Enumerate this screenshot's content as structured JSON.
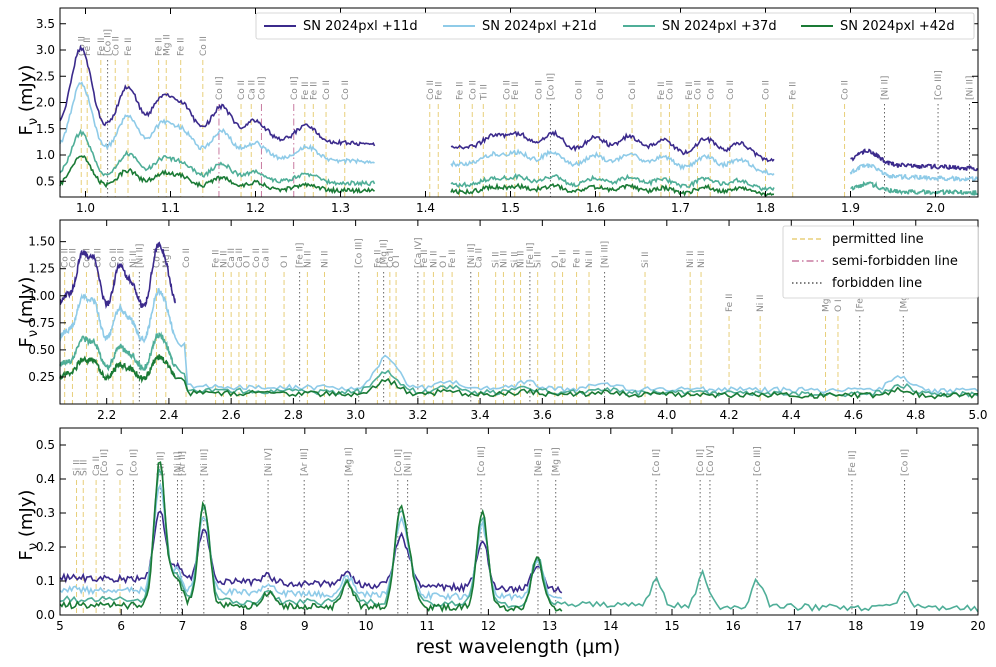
{
  "chart_data": {
    "type": "line",
    "xlabel": "rest wavelength (μm)",
    "ylabel": "F",
    "ylabel_sub": "ν",
    "ylabel_unit": " (mJy)",
    "series": [
      {
        "name": "SN 2024pxl +11d",
        "color": "#3b2a8c"
      },
      {
        "name": "SN 2024pxl +21d",
        "color": "#8fcbe8"
      },
      {
        "name": "SN 2024pxl +37d",
        "color": "#4fae98"
      },
      {
        "name": "SN 2024pxl +42d",
        "color": "#1a7a35"
      }
    ],
    "line_types": [
      {
        "name": "permitted line",
        "color": "#e8cf7a",
        "style": "dashed"
      },
      {
        "name": "semi-forbidden line",
        "color": "#c87aa0",
        "style": "dashdot"
      },
      {
        "name": "forbidden line",
        "color": "#555555",
        "style": "dotted"
      }
    ],
    "panels": [
      {
        "id": "p1",
        "xlim": [
          0.97,
          2.05
        ],
        "ylim": [
          0.2,
          3.8
        ],
        "xticks": [
          "1.0",
          "1.1",
          "1.2",
          "1.3",
          "1.4",
          "1.5",
          "1.6",
          "1.7",
          "1.8",
          "1.9",
          "2.0"
        ],
        "yticks": [
          "0.5",
          "1.0",
          "1.5",
          "2.0",
          "2.5",
          "3.0",
          "3.5"
        ],
        "lines": [
          {
            "x": 0.995,
            "label": "Co II",
            "kind": "permitted",
            "row": 0
          },
          {
            "x": 1.002,
            "label": "Fe II",
            "kind": "permitted",
            "row": 0
          },
          {
            "x": 1.018,
            "label": "Fe II",
            "kind": "permitted",
            "row": 0
          },
          {
            "x": 1.026,
            "label": "[Co II]",
            "kind": "forbidden",
            "row": 0
          },
          {
            "x": 1.035,
            "label": "Co II",
            "kind": "permitted",
            "row": 0
          },
          {
            "x": 1.05,
            "label": "Fe II",
            "kind": "permitted",
            "row": 0
          },
          {
            "x": 1.086,
            "label": "Fe II",
            "kind": "permitted",
            "row": 0
          },
          {
            "x": 1.095,
            "label": "Mg II",
            "kind": "permitted",
            "row": 0
          },
          {
            "x": 1.112,
            "label": "Fe II",
            "kind": "permitted",
            "row": 0
          },
          {
            "x": 1.138,
            "label": "Co II",
            "kind": "permitted",
            "row": 0
          },
          {
            "x": 1.157,
            "label": "Co II]",
            "kind": "semi",
            "row": 1
          },
          {
            "x": 1.183,
            "label": "Co II",
            "kind": "permitted",
            "row": 1
          },
          {
            "x": 1.195,
            "label": "Ca II",
            "kind": "permitted",
            "row": 1
          },
          {
            "x": 1.207,
            "label": "Co II]",
            "kind": "semi",
            "row": 1
          },
          {
            "x": 1.245,
            "label": "Co II]",
            "kind": "semi",
            "row": 1
          },
          {
            "x": 1.258,
            "label": "Fe II",
            "kind": "permitted",
            "row": 1
          },
          {
            "x": 1.268,
            "label": "Fe II",
            "kind": "permitted",
            "row": 1
          },
          {
            "x": 1.283,
            "label": "Co II",
            "kind": "permitted",
            "row": 1
          },
          {
            "x": 1.305,
            "label": "Co II",
            "kind": "permitted",
            "row": 1
          },
          {
            "x": 1.405,
            "label": "Co II",
            "kind": "permitted",
            "row": 1
          },
          {
            "x": 1.415,
            "label": "Fe II",
            "kind": "permitted",
            "row": 1
          },
          {
            "x": 1.44,
            "label": "Fe II",
            "kind": "permitted",
            "row": 1
          },
          {
            "x": 1.455,
            "label": "Co II",
            "kind": "permitted",
            "row": 1
          },
          {
            "x": 1.468,
            "label": "Ti II",
            "kind": "permitted",
            "row": 1
          },
          {
            "x": 1.495,
            "label": "Co II",
            "kind": "permitted",
            "row": 1
          },
          {
            "x": 1.505,
            "label": "Fe II",
            "kind": "permitted",
            "row": 1
          },
          {
            "x": 1.533,
            "label": "Co II",
            "kind": "permitted",
            "row": 1
          },
          {
            "x": 1.547,
            "label": "[Co II]",
            "kind": "forbidden",
            "row": 1
          },
          {
            "x": 1.58,
            "label": "Co II",
            "kind": "permitted",
            "row": 1
          },
          {
            "x": 1.605,
            "label": "Co II",
            "kind": "permitted",
            "row": 1
          },
          {
            "x": 1.643,
            "label": "Co II",
            "kind": "permitted",
            "row": 1
          },
          {
            "x": 1.677,
            "label": "Fe II",
            "kind": "permitted",
            "row": 1
          },
          {
            "x": 1.687,
            "label": "Co II",
            "kind": "permitted",
            "row": 1
          },
          {
            "x": 1.71,
            "label": "Fe II",
            "kind": "permitted",
            "row": 1
          },
          {
            "x": 1.72,
            "label": "Co II",
            "kind": "permitted",
            "row": 1
          },
          {
            "x": 1.735,
            "label": "Co II",
            "kind": "permitted",
            "row": 1
          },
          {
            "x": 1.758,
            "label": "Co II",
            "kind": "permitted",
            "row": 1
          },
          {
            "x": 1.8,
            "label": "Co II",
            "kind": "permitted",
            "row": 1
          },
          {
            "x": 1.832,
            "label": "Fe II",
            "kind": "permitted",
            "row": 1
          },
          {
            "x": 1.893,
            "label": "Co II",
            "kind": "permitted",
            "row": 1
          },
          {
            "x": 1.94,
            "label": "[Ni II]",
            "kind": "forbidden",
            "row": 1
          },
          {
            "x": 2.003,
            "label": "[Co III]",
            "kind": "forbidden",
            "row": 1
          },
          {
            "x": 2.04,
            "label": "[Ni II]",
            "kind": "forbidden",
            "row": 1
          }
        ]
      },
      {
        "id": "p2",
        "xlim": [
          2.05,
          5.0
        ],
        "ylim": [
          0.0,
          1.7
        ],
        "xticks": [
          "2.2",
          "2.4",
          "2.6",
          "2.8",
          "3.0",
          "3.2",
          "3.4",
          "3.6",
          "3.8",
          "4.0",
          "4.2",
          "4.4",
          "4.6",
          "4.8",
          "5.0"
        ],
        "yticks": [
          "0.25",
          "0.50",
          "0.75",
          "1.00",
          "1.25",
          "1.50"
        ],
        "lines": [
          {
            "x": 2.065,
            "label": "Co II",
            "kind": "permitted",
            "row": 0
          },
          {
            "x": 2.09,
            "label": "Co II",
            "kind": "permitted",
            "row": 0
          },
          {
            "x": 2.135,
            "label": "Co II",
            "kind": "permitted",
            "row": 0
          },
          {
            "x": 2.17,
            "label": "Co II",
            "kind": "permitted",
            "row": 0
          },
          {
            "x": 2.22,
            "label": "Co II",
            "kind": "permitted",
            "row": 0
          },
          {
            "x": 2.245,
            "label": "Co II",
            "kind": "permitted",
            "row": 0
          },
          {
            "x": 2.285,
            "label": "Ni II",
            "kind": "permitted",
            "row": 0
          },
          {
            "x": 2.305,
            "label": "[Ni II]",
            "kind": "forbidden",
            "row": 0
          },
          {
            "x": 2.36,
            "label": "Co II",
            "kind": "permitted",
            "row": 0
          },
          {
            "x": 2.39,
            "label": "Mg II",
            "kind": "permitted",
            "row": 0
          },
          {
            "x": 2.455,
            "label": "Co II",
            "kind": "permitted",
            "row": 0
          },
          {
            "x": 2.55,
            "label": "Fe II",
            "kind": "permitted",
            "row": 0
          },
          {
            "x": 2.575,
            "label": "Ni II",
            "kind": "permitted",
            "row": 0
          },
          {
            "x": 2.6,
            "label": "Ca II",
            "kind": "permitted",
            "row": 0
          },
          {
            "x": 2.625,
            "label": "Ca II",
            "kind": "permitted",
            "row": 0
          },
          {
            "x": 2.65,
            "label": "O I",
            "kind": "permitted",
            "row": 0
          },
          {
            "x": 2.68,
            "label": "Co II",
            "kind": "permitted",
            "row": 0
          },
          {
            "x": 2.71,
            "label": "Ca II",
            "kind": "permitted",
            "row": 0
          },
          {
            "x": 2.77,
            "label": "O I",
            "kind": "permitted",
            "row": 0
          },
          {
            "x": 2.82,
            "label": "[Fe II]",
            "kind": "forbidden",
            "row": 0
          },
          {
            "x": 2.845,
            "label": "Ni II",
            "kind": "permitted",
            "row": 0
          },
          {
            "x": 2.9,
            "label": "Ni II",
            "kind": "permitted",
            "row": 0
          },
          {
            "x": 3.01,
            "label": "[Co III]",
            "kind": "forbidden",
            "row": 0
          },
          {
            "x": 3.07,
            "label": "Fe II",
            "kind": "permitted",
            "row": 0
          },
          {
            "x": 3.09,
            "label": "[Mg II]",
            "kind": "forbidden",
            "row": 0
          },
          {
            "x": 3.11,
            "label": "Co II",
            "kind": "permitted",
            "row": 0
          },
          {
            "x": 3.13,
            "label": "O I",
            "kind": "permitted",
            "row": 0
          },
          {
            "x": 3.2,
            "label": "[Ca IV]",
            "kind": "forbidden",
            "row": 0
          },
          {
            "x": 3.22,
            "label": "Fe II",
            "kind": "permitted",
            "row": 0
          },
          {
            "x": 3.25,
            "label": "Ni II",
            "kind": "permitted",
            "row": 0
          },
          {
            "x": 3.28,
            "label": "O I",
            "kind": "permitted",
            "row": 0
          },
          {
            "x": 3.31,
            "label": "Fe II",
            "kind": "permitted",
            "row": 0
          },
          {
            "x": 3.37,
            "label": "[Ni II]",
            "kind": "forbidden",
            "row": 0
          },
          {
            "x": 3.395,
            "label": "Ca II",
            "kind": "permitted",
            "row": 0
          },
          {
            "x": 3.45,
            "label": "Si II",
            "kind": "permitted",
            "row": 0
          },
          {
            "x": 3.475,
            "label": "Ni II",
            "kind": "permitted",
            "row": 0
          },
          {
            "x": 3.51,
            "label": "Si II",
            "kind": "permitted",
            "row": 0
          },
          {
            "x": 3.53,
            "label": "Ni II",
            "kind": "permitted",
            "row": 0
          },
          {
            "x": 3.56,
            "label": "[Fe II]",
            "kind": "forbidden",
            "row": 0
          },
          {
            "x": 3.585,
            "label": "Si II",
            "kind": "permitted",
            "row": 0
          },
          {
            "x": 3.64,
            "label": "O I",
            "kind": "permitted",
            "row": 0
          },
          {
            "x": 3.665,
            "label": "Fe II",
            "kind": "permitted",
            "row": 0
          },
          {
            "x": 3.71,
            "label": "Fe II",
            "kind": "permitted",
            "row": 0
          },
          {
            "x": 3.75,
            "label": "Ni II",
            "kind": "permitted",
            "row": 0
          },
          {
            "x": 3.8,
            "label": "[Ni III]",
            "kind": "forbidden",
            "row": 0
          },
          {
            "x": 3.93,
            "label": "Si II",
            "kind": "permitted",
            "row": 0
          },
          {
            "x": 4.075,
            "label": "Ni II",
            "kind": "permitted",
            "row": 0
          },
          {
            "x": 4.11,
            "label": "Ni II",
            "kind": "permitted",
            "row": 0
          },
          {
            "x": 4.2,
            "label": "Fe II",
            "kind": "permitted",
            "row": 1
          },
          {
            "x": 4.3,
            "label": "Ni II",
            "kind": "permitted",
            "row": 1
          },
          {
            "x": 4.51,
            "label": "Mg II",
            "kind": "permitted",
            "row": 1
          },
          {
            "x": 4.55,
            "label": "O I",
            "kind": "permitted",
            "row": 1
          },
          {
            "x": 4.62,
            "label": "[Fe II]",
            "kind": "forbidden",
            "row": 1
          },
          {
            "x": 4.76,
            "label": "[Mg II]",
            "kind": "forbidden",
            "row": 1
          }
        ]
      },
      {
        "id": "p3",
        "xlim": [
          5.0,
          20.0
        ],
        "ylim": [
          0.0,
          0.55
        ],
        "xticks": [
          "5",
          "6",
          "7",
          "8",
          "9",
          "10",
          "11",
          "12",
          "13",
          "14",
          "15",
          "16",
          "17",
          "18",
          "19",
          "20"
        ],
        "yticks": [
          "0.0",
          "0.1",
          "0.2",
          "0.3",
          "0.4",
          "0.5"
        ],
        "lines": [
          {
            "x": 5.27,
            "label": "Si II",
            "kind": "permitted",
            "row": 0
          },
          {
            "x": 5.38,
            "label": "Si II",
            "kind": "permitted",
            "row": 0
          },
          {
            "x": 5.59,
            "label": "Ca II",
            "kind": "permitted",
            "row": 0
          },
          {
            "x": 5.72,
            "label": "[Co II]",
            "kind": "forbidden",
            "row": 0
          },
          {
            "x": 5.98,
            "label": "O I",
            "kind": "permitted",
            "row": 0
          },
          {
            "x": 6.2,
            "label": "[Co II]",
            "kind": "forbidden",
            "row": 0
          },
          {
            "x": 6.64,
            "label": "[Ni II]",
            "kind": "forbidden",
            "row": 0
          },
          {
            "x": 6.92,
            "label": "[Ni II]",
            "kind": "forbidden",
            "row": 0
          },
          {
            "x": 6.99,
            "label": "[Ar II]",
            "kind": "forbidden",
            "row": 0
          },
          {
            "x": 7.35,
            "label": "[Ni III]",
            "kind": "forbidden",
            "row": 0
          },
          {
            "x": 8.4,
            "label": "[Ni IV]",
            "kind": "forbidden",
            "row": 0
          },
          {
            "x": 8.99,
            "label": "[Ar III]",
            "kind": "forbidden",
            "row": 0
          },
          {
            "x": 9.71,
            "label": "[Mg II]",
            "kind": "forbidden",
            "row": 0
          },
          {
            "x": 10.52,
            "label": "[Co II]",
            "kind": "forbidden",
            "row": 0
          },
          {
            "x": 10.68,
            "label": "[Ni II]",
            "kind": "forbidden",
            "row": 0
          },
          {
            "x": 11.88,
            "label": "[Co III]",
            "kind": "forbidden",
            "row": 0
          },
          {
            "x": 12.81,
            "label": "[Ne II]",
            "kind": "forbidden",
            "row": 0
          },
          {
            "x": 13.1,
            "label": "[Mg II]",
            "kind": "forbidden",
            "row": 0
          },
          {
            "x": 14.74,
            "label": "[Co II]",
            "kind": "forbidden",
            "row": 0
          },
          {
            "x": 15.46,
            "label": "[Co II]",
            "kind": "forbidden",
            "row": 0
          },
          {
            "x": 15.62,
            "label": "[Co IV]",
            "kind": "forbidden",
            "row": 0
          },
          {
            "x": 16.39,
            "label": "[Co III]",
            "kind": "forbidden",
            "row": 0
          },
          {
            "x": 17.94,
            "label": "[Fe II]",
            "kind": "forbidden",
            "row": 0
          },
          {
            "x": 18.8,
            "label": "[Co II]",
            "kind": "forbidden",
            "row": 0
          }
        ]
      }
    ]
  }
}
